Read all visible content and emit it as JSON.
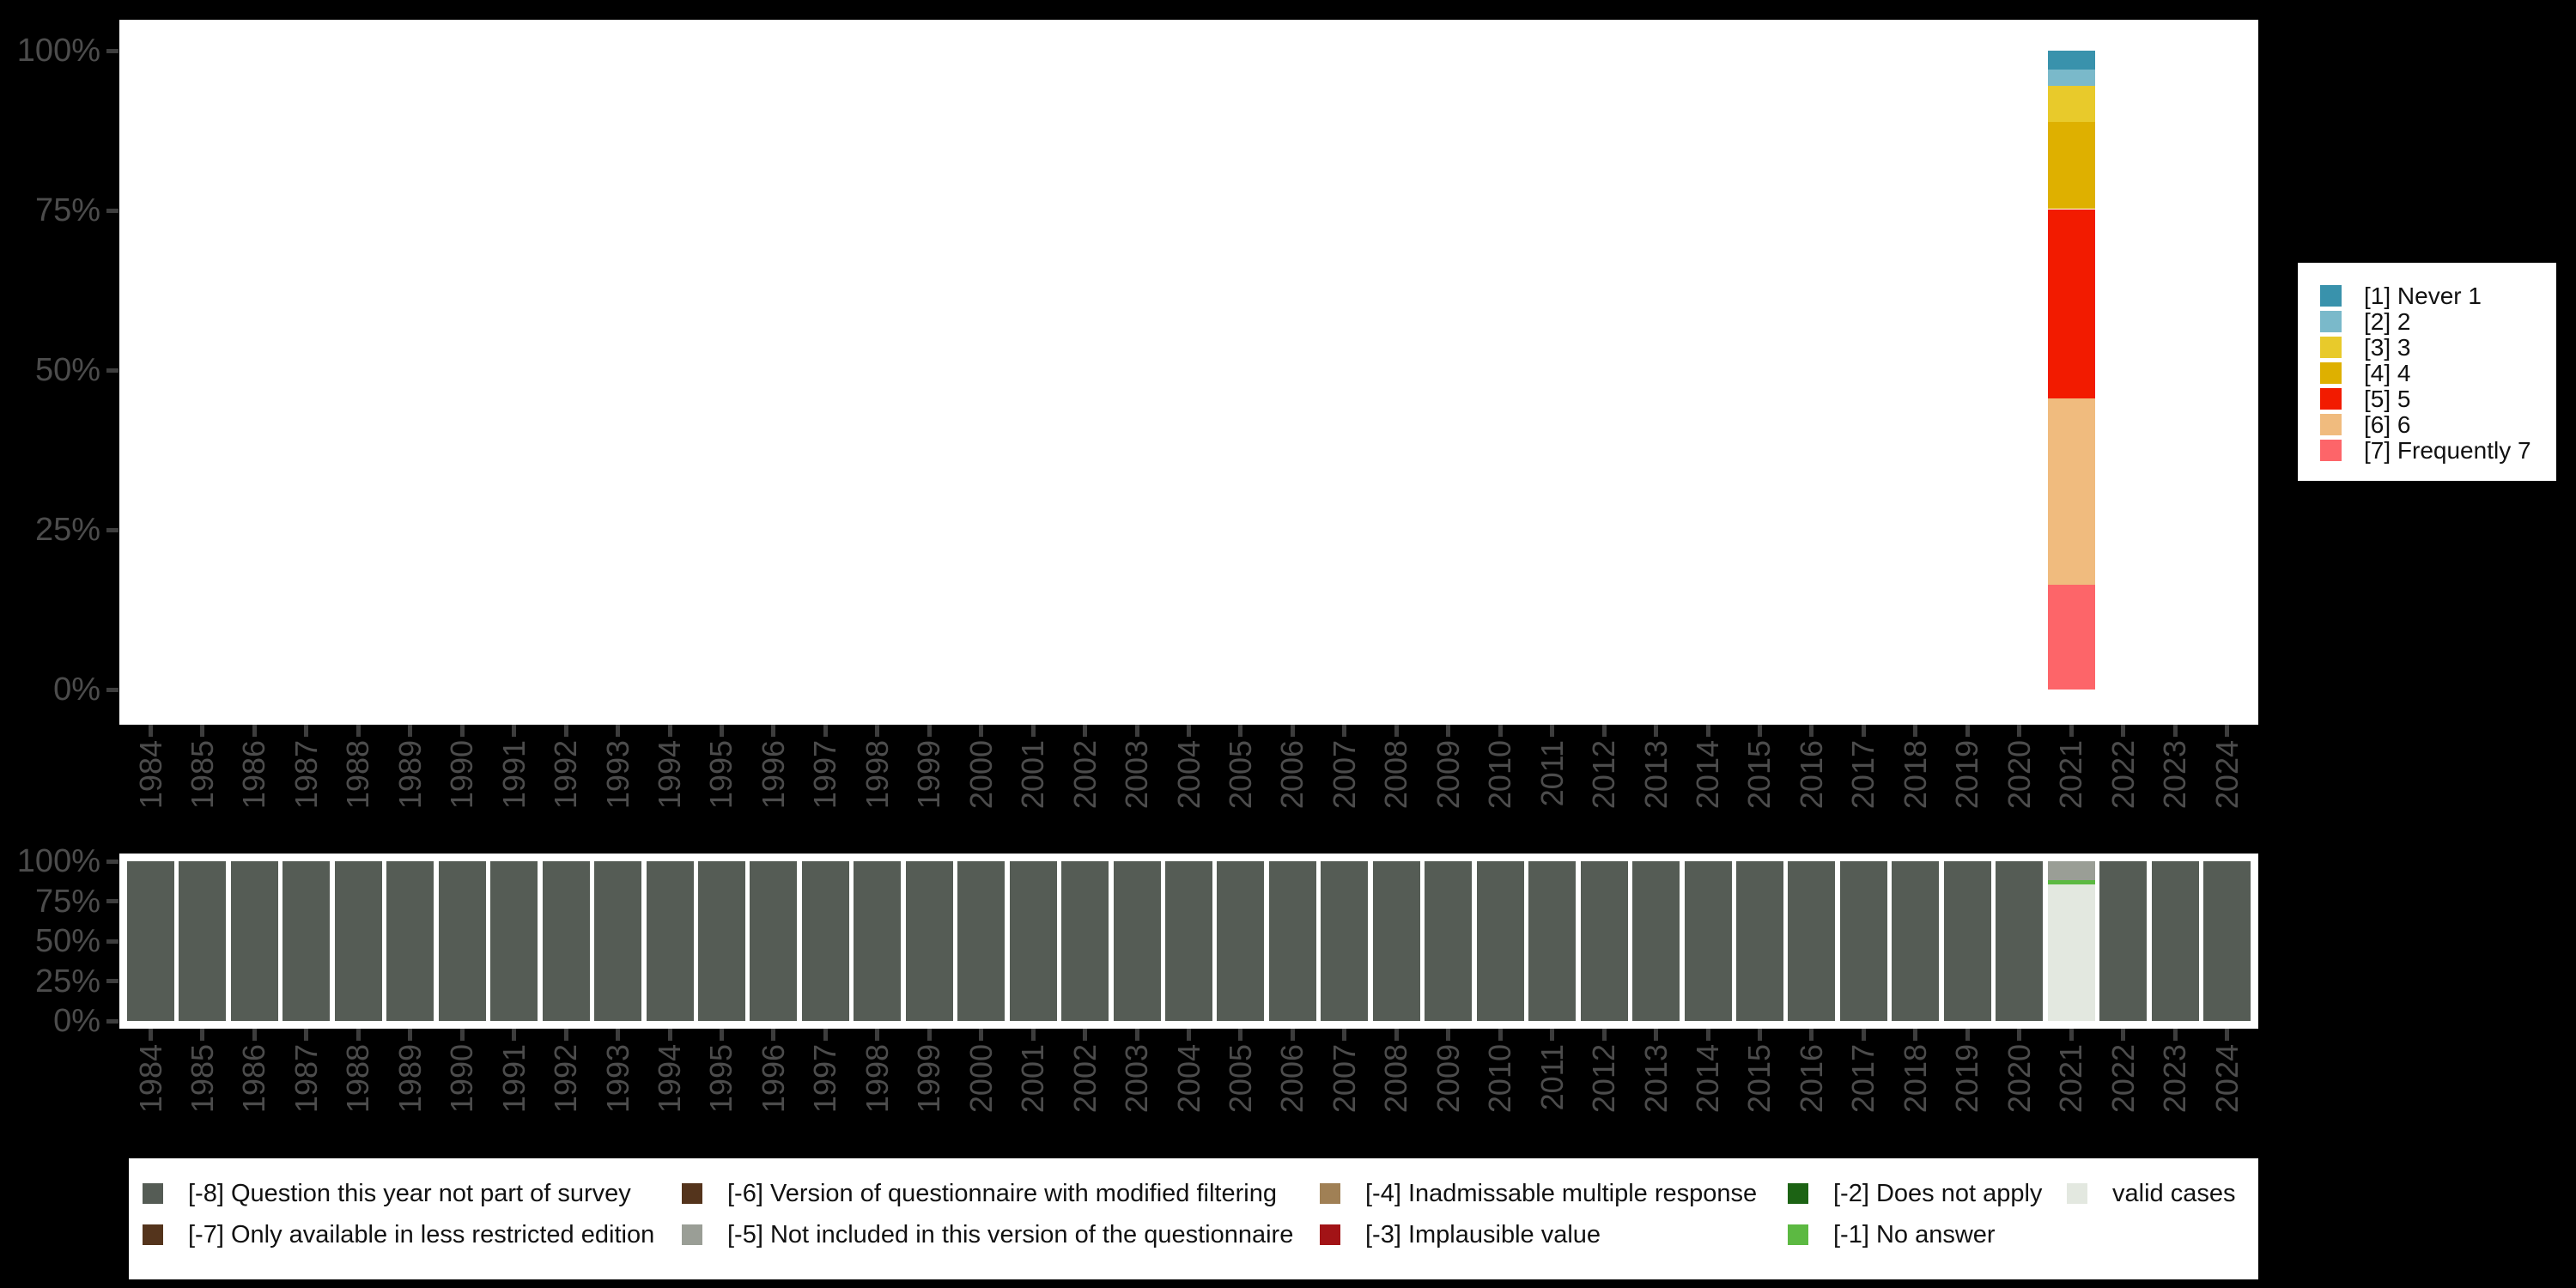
{
  "page": {
    "background": "#000000",
    "panel_background": "#ffffff",
    "axis_text_color": "#4c4c4c",
    "tick_color": "#3d3d3d"
  },
  "chart_data": [
    {
      "id": "values-by-year",
      "type": "bar",
      "variant": "stacked_percent_columns",
      "title": "",
      "xlabel": "",
      "ylabel": "",
      "x": [
        1984,
        1985,
        1986,
        1987,
        1988,
        1989,
        1990,
        1991,
        1992,
        1993,
        1994,
        1995,
        1996,
        1997,
        1998,
        1999,
        2000,
        2001,
        2002,
        2003,
        2004,
        2005,
        2006,
        2007,
        2008,
        2009,
        2010,
        2011,
        2012,
        2013,
        2014,
        2015,
        2016,
        2017,
        2018,
        2019,
        2020,
        2021,
        2022,
        2023,
        2024
      ],
      "ylim": [
        0,
        100
      ],
      "yticks": [
        "0%",
        "25%",
        "50%",
        "75%",
        "100%"
      ],
      "grid": false,
      "legend_position": "right",
      "series": [
        {
          "name": "[1] Never 1",
          "color": "#3992ac",
          "values_by_year": {
            "2021": 2.9
          }
        },
        {
          "name": "[2] 2",
          "color": "#7ab9ca",
          "values_by_year": {
            "2021": 2.6
          }
        },
        {
          "name": "[3] 3",
          "color": "#e8ca2b",
          "values_by_year": {
            "2021": 5.7
          }
        },
        {
          "name": "[4] 4",
          "color": "#deb000",
          "values_by_year": {
            "2021": 13.6
          }
        },
        {
          "name": "[5] 5",
          "color": "#f21b00",
          "values_by_year": {
            "2021": 29.7
          }
        },
        {
          "name": "[6] 6",
          "color": "#f0bb7e",
          "values_by_year": {
            "2021": 29.1
          }
        },
        {
          "name": "[7] Frequently 7",
          "color": "#fd6569",
          "values_by_year": {
            "2021": 16.4
          }
        }
      ],
      "bars_note": "all years empty except 2021 which totals 100%"
    },
    {
      "id": "missing-values-by-year",
      "type": "bar",
      "variant": "stacked_percent_columns",
      "title": "",
      "xlabel": "",
      "ylabel": "",
      "x": [
        1984,
        1985,
        1986,
        1987,
        1988,
        1989,
        1990,
        1991,
        1992,
        1993,
        1994,
        1995,
        1996,
        1997,
        1998,
        1999,
        2000,
        2001,
        2002,
        2003,
        2004,
        2005,
        2006,
        2007,
        2008,
        2009,
        2010,
        2011,
        2012,
        2013,
        2014,
        2015,
        2016,
        2017,
        2018,
        2019,
        2020,
        2021,
        2022,
        2023,
        2024
      ],
      "ylim": [
        0,
        100
      ],
      "yticks": [
        "0%",
        "25%",
        "50%",
        "75%",
        "100%"
      ],
      "grid": false,
      "legend_position": "bottom",
      "series": [
        {
          "name": "[-8] Question this year not part of survey",
          "color": "#555c55"
        },
        {
          "name": "[-7] Only available in less restricted edition",
          "color": "#54341c"
        },
        {
          "name": "[-6] Version of questionnaire with modified filtering",
          "color": "#54341c"
        },
        {
          "name": "[-5] Not included in this version of the questionnaire",
          "color": "#9a9e96"
        },
        {
          "name": "[-4] Inadmissable multiple response",
          "color": "#a08055"
        },
        {
          "name": "[-3] Implausible value",
          "color": "#a21316"
        },
        {
          "name": "[-2] Does not apply",
          "color": "#1c6314"
        },
        {
          "name": "[-1] No answer",
          "color": "#5cb942"
        },
        {
          "name": "valid cases",
          "color": "#e3e8e0"
        }
      ],
      "default_bar": [
        {
          "name": "[-8] Question this year not part of survey",
          "pct": 100
        }
      ],
      "bars": {
        "2021": [
          {
            "name": "[-5] Not included in this version of the questionnaire",
            "pct": 11.8
          },
          {
            "name": "[-1] No answer",
            "pct": 2.7
          },
          {
            "name": "valid cases",
            "pct": 85.5
          }
        ]
      }
    }
  ],
  "top_bars_by_year": {
    "2021": [
      {
        "name": "[1] Never 1",
        "pct": 2.9
      },
      {
        "name": "[2] 2",
        "pct": 2.6
      },
      {
        "name": "[3] 3",
        "pct": 5.7
      },
      {
        "name": "[4] 4",
        "pct": 13.6
      },
      {
        "name": "[5] 5",
        "pct": 29.7
      },
      {
        "name": "[6] 6",
        "pct": 29.1
      },
      {
        "name": "[7] Frequently 7",
        "pct": 16.4
      }
    ]
  }
}
